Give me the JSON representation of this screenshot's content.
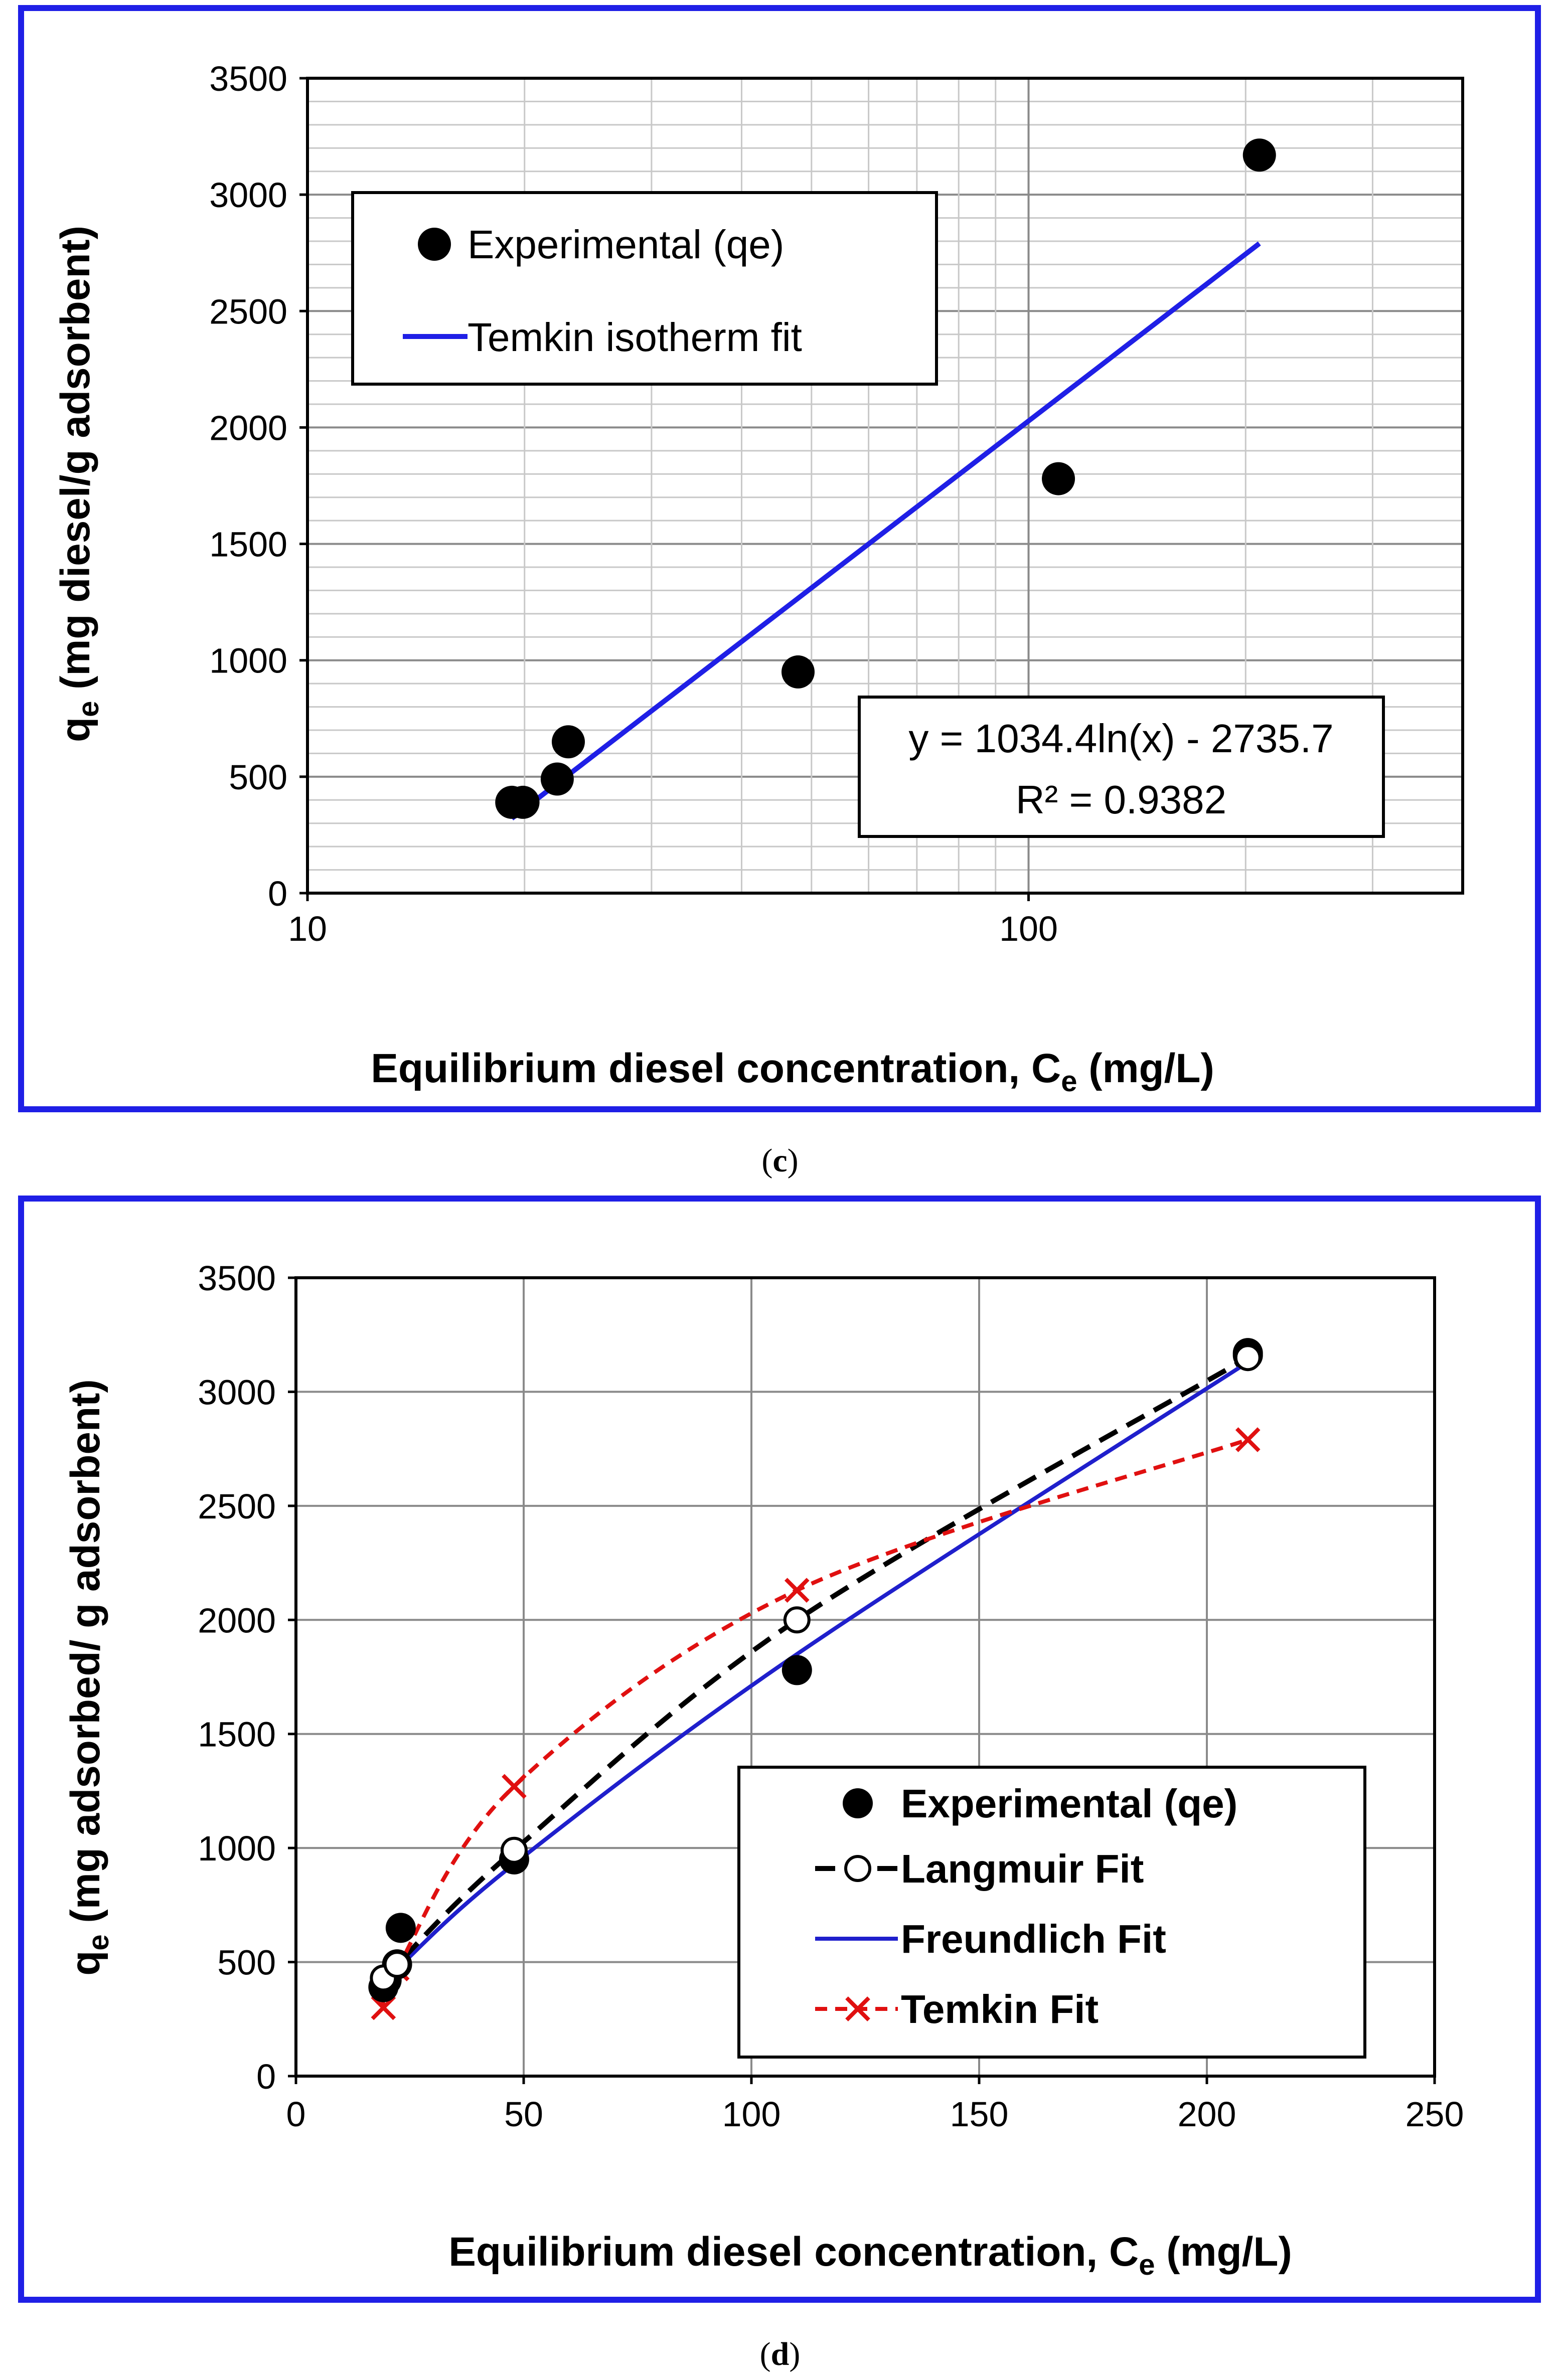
{
  "colors": {
    "frame": "#1f1fe6",
    "temkin_fit_c": "#1f1fe6",
    "langmuir": "#000000",
    "freundlich": "#1f1fcc",
    "temkin_d": "#e01010"
  },
  "chart_data": [
    {
      "panel": "c",
      "type": "scatter",
      "xscale": "log",
      "xlim": [
        10,
        400
      ],
      "ylim": [
        0,
        3500
      ],
      "xticks": [
        10,
        100
      ],
      "yticks": [
        0,
        500,
        1000,
        1500,
        2000,
        2500,
        3000,
        3500
      ],
      "xlabel_main": "Equilibrium diesel concentration, C",
      "xlabel_sub": "e",
      "xlabel_tail": " (mg/L)",
      "ylabel_main": "q",
      "ylabel_sub": "e",
      "ylabel_tail": " (mg diesel/g adsorbent)",
      "series": [
        {
          "name": "Experimental (qe)",
          "x": [
            19.2,
            19.9,
            22.2,
            23.0,
            47.9,
            110.0,
            209.0
          ],
          "y": [
            390,
            390,
            490,
            650,
            950,
            1780,
            3170
          ]
        },
        {
          "name": "Temkin isotherm fit",
          "x": [
            19.2,
            209.0
          ]
        }
      ],
      "fit": {
        "a": 1034.4,
        "b": -2735.7
      },
      "equation": "y = 1034.4ln(x) - 2735.7",
      "r2_label": "R² = 0.9382",
      "caption": "c"
    },
    {
      "panel": "d",
      "type": "scatter",
      "xlim": [
        0,
        250
      ],
      "ylim": [
        0,
        3500
      ],
      "xticks": [
        0,
        50,
        100,
        150,
        200,
        250
      ],
      "yticks": [
        0,
        500,
        1000,
        1500,
        2000,
        2500,
        3000,
        3500
      ],
      "xlabel_main": "Equilibrium diesel concentration, C",
      "xlabel_sub": "e",
      "xlabel_tail": " (mg/L)",
      "ylabel_main": "q",
      "ylabel_sub": "e",
      "ylabel_tail": "  (mg adsorbed/ g adsorbent)",
      "series": [
        {
          "name": "Experimental (qe)",
          "x": [
            19.2,
            19.9,
            22.2,
            23.0,
            47.9,
            110.0,
            209.0,
            209.0
          ],
          "y": [
            390,
            420,
            490,
            650,
            950,
            1780,
            3170,
            3160
          ]
        },
        {
          "name": "Langmuir Fit",
          "x": [
            19.2,
            22.2,
            47.9,
            110.0,
            209.0
          ],
          "y": [
            430,
            490,
            990,
            2000,
            3150
          ]
        },
        {
          "name": "Freundlich Fit",
          "x": [
            19.2,
            22.2,
            47.9,
            110.0,
            209.0
          ],
          "y": [
            400,
            470,
            930,
            1850,
            3130
          ]
        },
        {
          "name": "Temkin Fit",
          "x": [
            19.2,
            22.2,
            47.9,
            110.0,
            209.0
          ],
          "y": [
            300,
            470,
            1270,
            2130,
            2790
          ]
        }
      ],
      "caption": "d"
    }
  ]
}
